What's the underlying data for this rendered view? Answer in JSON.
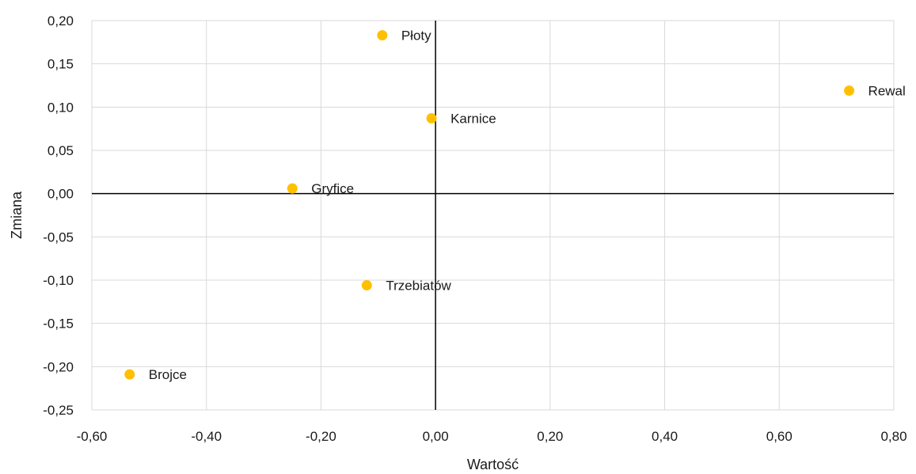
{
  "chart_data": {
    "type": "scatter",
    "title": "",
    "xlabel": "Wartość",
    "ylabel": "Zmiana",
    "xlim": [
      -0.6,
      0.8
    ],
    "ylim": [
      -0.25,
      0.2
    ],
    "xticks": [
      -0.6,
      -0.4,
      -0.2,
      0.0,
      0.2,
      0.4,
      0.6,
      0.8
    ],
    "yticks": [
      -0.25,
      -0.2,
      -0.15,
      -0.1,
      -0.05,
      0.0,
      0.05,
      0.1,
      0.15,
      0.2
    ],
    "xtick_labels": [
      "-0,60",
      "-0,40",
      "-0,20",
      "0,00",
      "0,20",
      "0,40",
      "0,60",
      "0,80"
    ],
    "ytick_labels": [
      "-0,25",
      "-0,20",
      "-0,15",
      "-0,10",
      "-0,05",
      "0,00",
      "0,05",
      "0,10",
      "0,15",
      "0,20"
    ],
    "grid": true,
    "point_color": "#FFC000",
    "points": [
      {
        "label": "Płoty",
        "x": -0.093,
        "y": 0.183
      },
      {
        "label": "Rewal",
        "x": 0.722,
        "y": 0.119
      },
      {
        "label": "Karnice",
        "x": -0.007,
        "y": 0.087
      },
      {
        "label": "Gryfice",
        "x": -0.25,
        "y": 0.006
      },
      {
        "label": "Trzebiatów",
        "x": -0.12,
        "y": -0.106
      },
      {
        "label": "Brojce",
        "x": -0.534,
        "y": -0.209
      }
    ]
  }
}
